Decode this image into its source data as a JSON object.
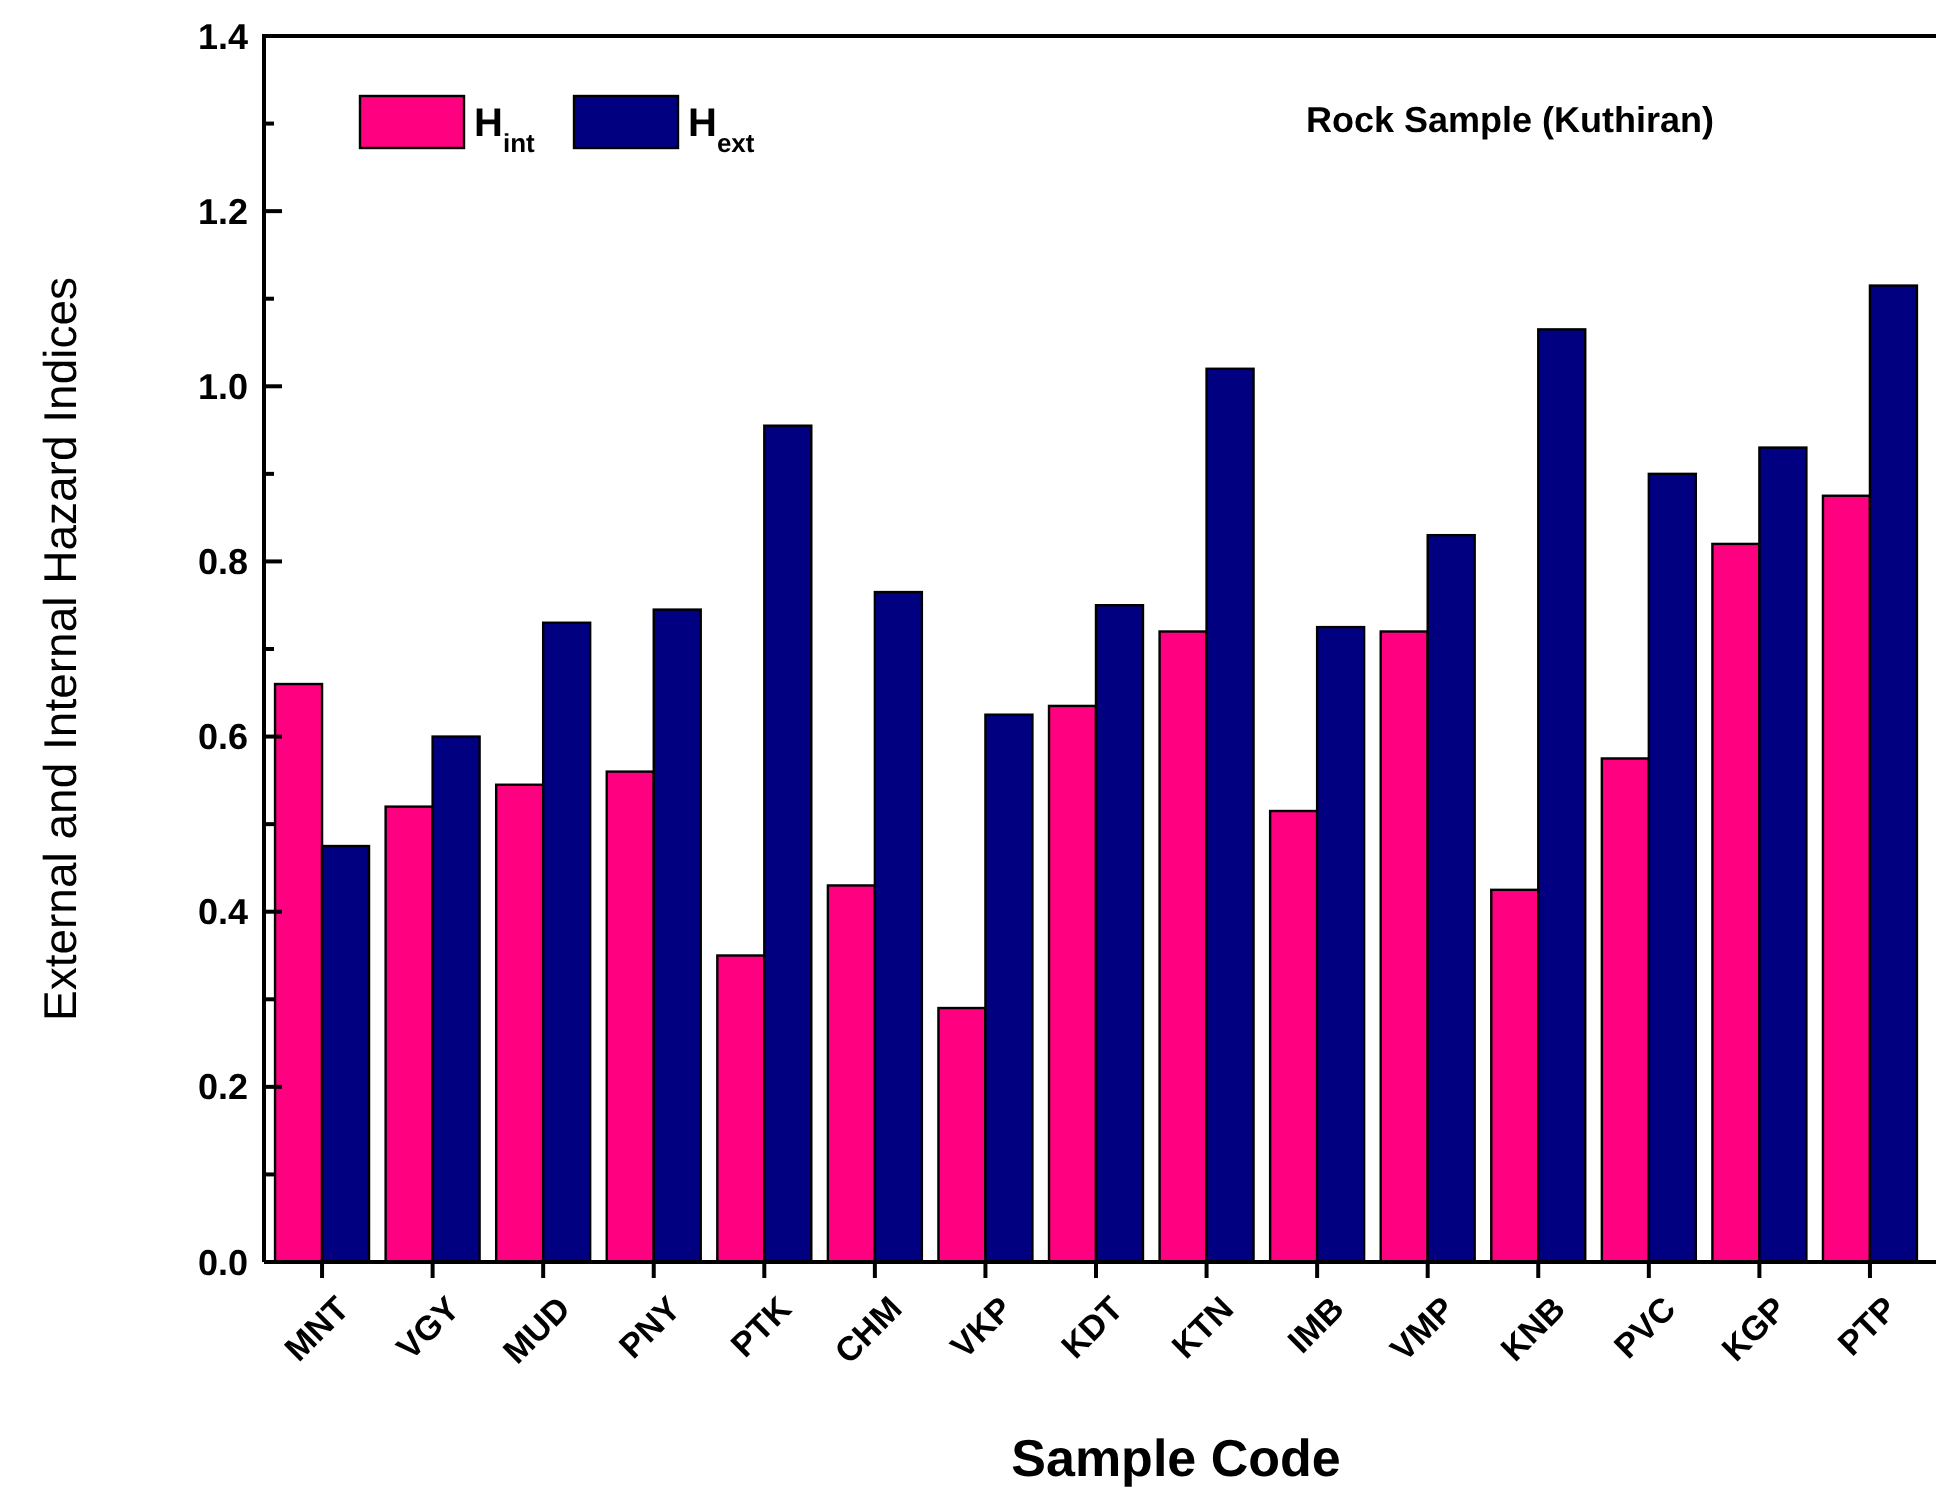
{
  "chart_data": {
    "type": "bar",
    "xlabel": "Sample Code",
    "ylabel": "External and Internal Hazard Indices",
    "annotations": [
      "Rock Sample (Kuthiran)"
    ],
    "categories": [
      "MNT",
      "VGY",
      "MUD",
      "PNY",
      "PTK",
      "CHM",
      "VKP",
      "KDT",
      "KTN",
      "IMB",
      "VMP",
      "KNB",
      "PVC",
      "KGP",
      "PTP"
    ],
    "series": [
      {
        "name": "H$_{int}$",
        "color": "#ff0080",
        "values": [
          0.66,
          0.52,
          0.545,
          0.56,
          0.35,
          0.43,
          0.29,
          0.635,
          0.72,
          0.515,
          0.72,
          0.425,
          0.575,
          0.82,
          0.875
        ]
      },
      {
        "name": "H$_{ext}$",
        "color": "#000080",
        "values": [
          0.475,
          0.6,
          0.73,
          0.745,
          0.955,
          0.765,
          0.625,
          0.75,
          1.02,
          0.725,
          0.83,
          1.065,
          0.9,
          0.93,
          1.115
        ]
      }
    ],
    "ylim": [
      0,
      1.4
    ],
    "yticks": [
      {
        "value": 0,
        "label": "0.0"
      },
      {
        "value": 0.1,
        "label": null
      },
      {
        "value": 0.2,
        "label": "0.2"
      },
      {
        "value": 0.3,
        "label": null
      },
      {
        "value": 0.4,
        "label": "0.4"
      },
      {
        "value": 0.5,
        "label": null
      },
      {
        "value": 0.6,
        "label": "0.6"
      },
      {
        "value": 0.7,
        "label": null
      },
      {
        "value": 0.8,
        "label": "0.8"
      },
      {
        "value": 0.9,
        "label": null
      },
      {
        "value": 1,
        "label": "1.0"
      },
      {
        "value": 1.1,
        "label": null
      },
      {
        "value": 1.2,
        "label": "1.2"
      },
      {
        "value": 1.3,
        "label": null
      },
      {
        "value": 1.4,
        "label": "1.4"
      }
    ],
    "legend": "top left"
  }
}
